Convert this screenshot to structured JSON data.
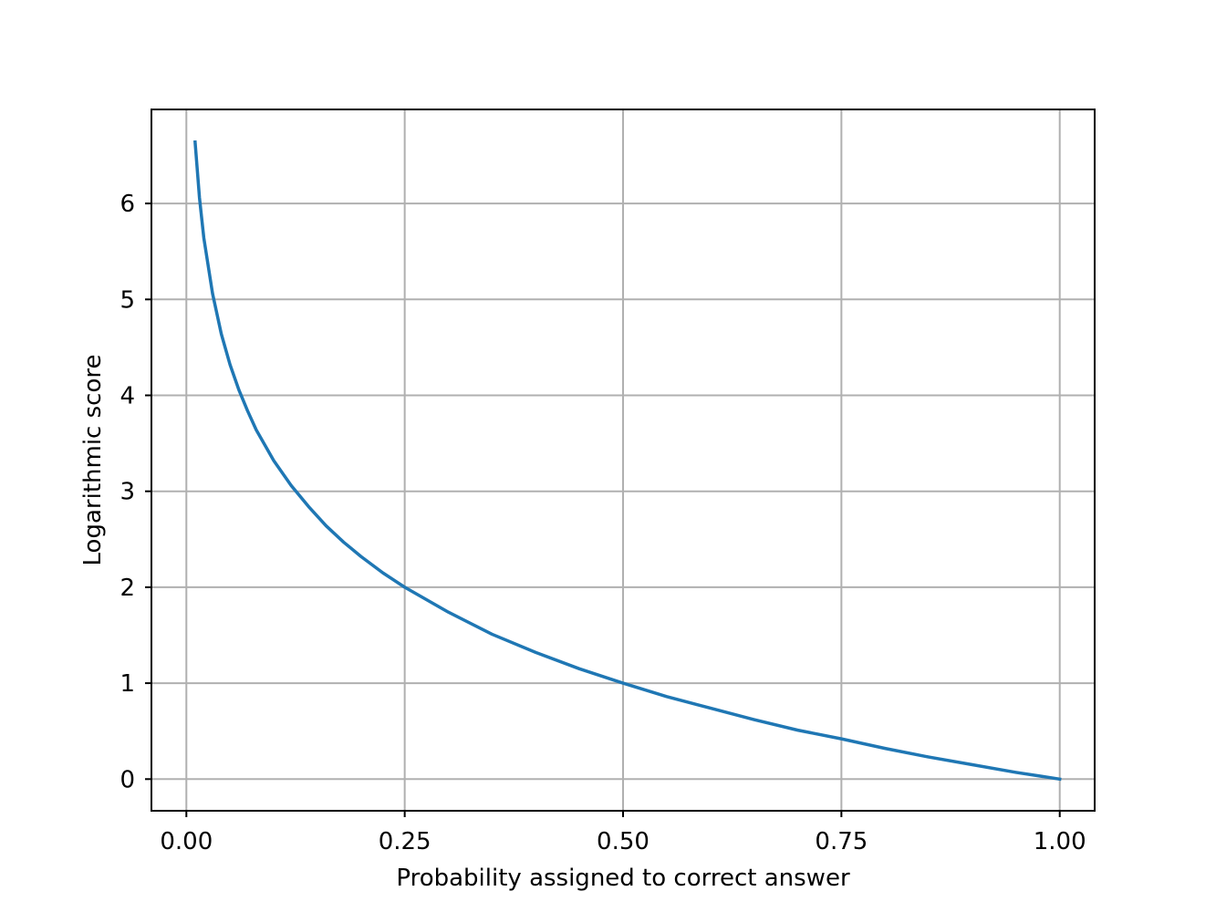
{
  "chart_data": {
    "type": "line",
    "title": "",
    "xlabel": "Probability assigned to correct answer",
    "ylabel": "Logarithmic score",
    "xlim": [
      -0.04,
      1.04
    ],
    "ylim": [
      -0.33,
      6.98
    ],
    "grid": true,
    "xticks": [
      0.0,
      0.25,
      0.5,
      0.75,
      1.0
    ],
    "xtick_labels": [
      "0.00",
      "0.25",
      "0.50",
      "0.75",
      "1.00"
    ],
    "yticks": [
      0,
      1,
      2,
      3,
      4,
      5,
      6
    ],
    "ytick_labels": [
      "0",
      "1",
      "2",
      "3",
      "4",
      "5",
      "6"
    ],
    "series": [
      {
        "color": "#1f77b4",
        "x": [
          0.01,
          0.015,
          0.02,
          0.03,
          0.04,
          0.05,
          0.06,
          0.07,
          0.08,
          0.1,
          0.12,
          0.14,
          0.16,
          0.18,
          0.2,
          0.225,
          0.25,
          0.3,
          0.35,
          0.4,
          0.45,
          0.5,
          0.55,
          0.6,
          0.65,
          0.7,
          0.75,
          0.8,
          0.85,
          0.9,
          0.95,
          1.0
        ],
        "y": [
          6.64,
          6.06,
          5.64,
          5.06,
          4.64,
          4.32,
          4.06,
          3.84,
          3.64,
          3.32,
          3.06,
          2.84,
          2.64,
          2.47,
          2.32,
          2.15,
          2.0,
          1.74,
          1.51,
          1.32,
          1.15,
          1.0,
          0.86,
          0.74,
          0.62,
          0.51,
          0.42,
          0.32,
          0.23,
          0.15,
          0.07,
          0.0
        ]
      }
    ]
  }
}
